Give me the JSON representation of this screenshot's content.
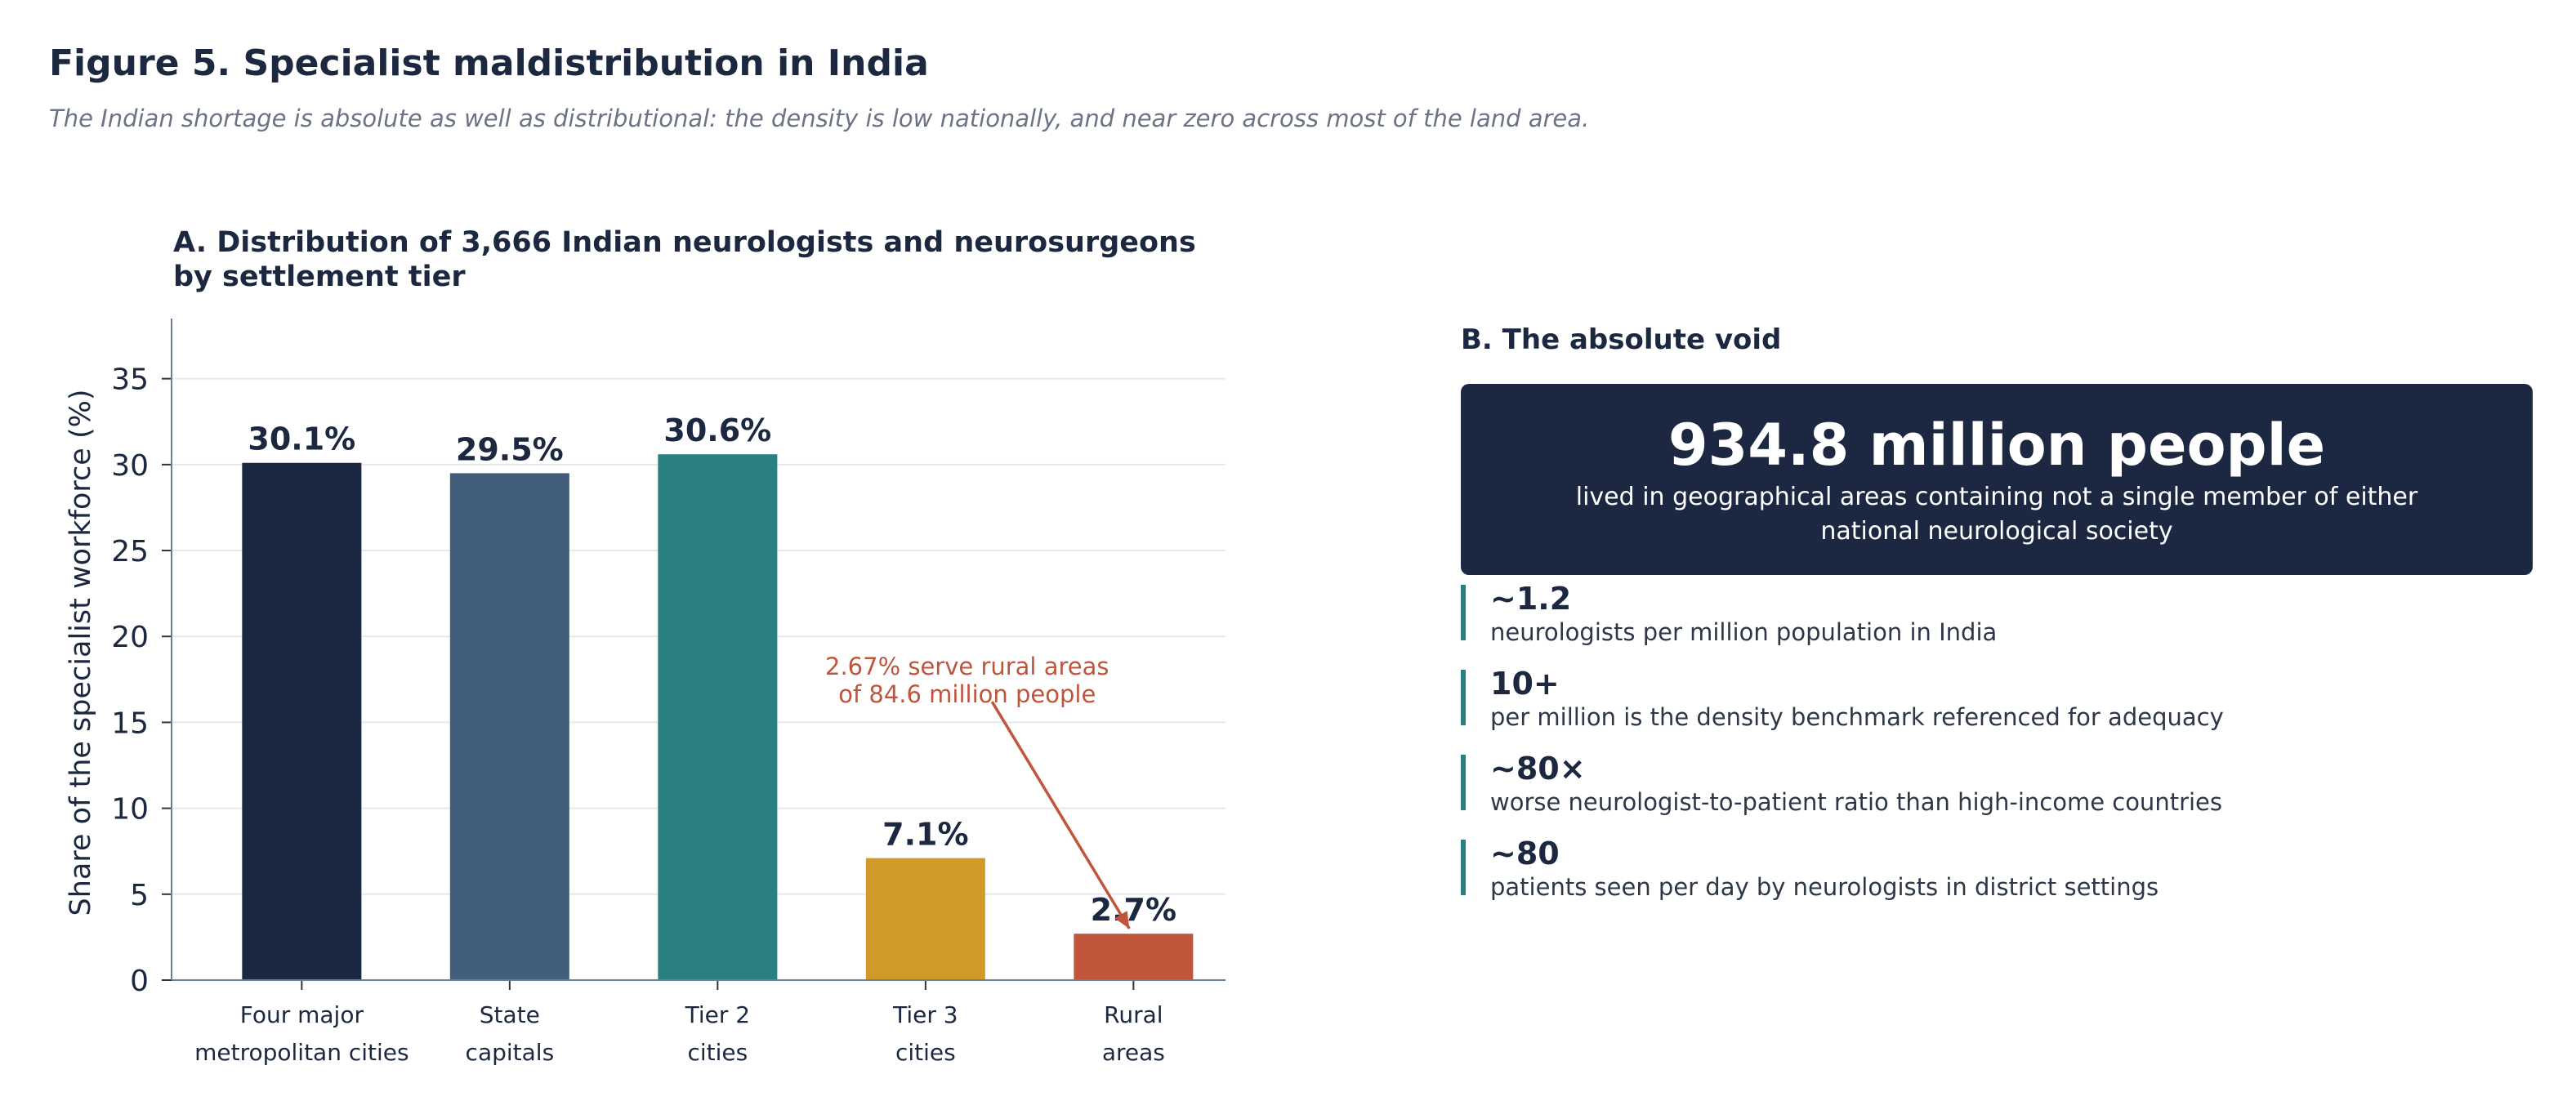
{
  "figure": {
    "title": "Figure 5.  Specialist maldistribution in India",
    "subtitle": "The Indian shortage is absolute as well as distributional: the density is low nationally, and near zero across most of the land area."
  },
  "chart_data": {
    "type": "bar",
    "title_lines": [
      "A.  Distribution of 3,666 Indian neurologists and neurosurgeons",
      "by settlement tier"
    ],
    "categories": [
      [
        "Four major",
        "metropolitan cities"
      ],
      [
        "State",
        "capitals"
      ],
      [
        "Tier 2",
        "cities"
      ],
      [
        "Tier 3",
        "cities"
      ],
      [
        "Rural",
        "areas"
      ]
    ],
    "values": [
      30.1,
      29.5,
      30.6,
      7.1,
      2.7
    ],
    "value_labels": [
      "30.1%",
      "29.5%",
      "30.6%",
      "7.1%",
      "2.7%"
    ],
    "colors": [
      "#1c2841",
      "#435e7b",
      "#2a7f80",
      "#d19a28",
      "#c0553b"
    ],
    "ylabel": "Share of the specialist workforce (%)",
    "ylim": [
      0,
      38.5
    ],
    "yticks": [
      0,
      5,
      10,
      15,
      20,
      25,
      30,
      35
    ],
    "grid": true,
    "annotation": {
      "lines": [
        "2.67% serve rural areas",
        "of 84.6 million people"
      ],
      "color": "#c0553b",
      "text_anchor": [
        3.2,
        17.5
      ],
      "arrow_from": [
        3.32,
        16.2
      ],
      "arrow_to": [
        3.98,
        3.0
      ]
    }
  },
  "panel_b": {
    "title": "B.  The absolute void",
    "highlight": {
      "number": "934.8 million people",
      "text": "lived in geographical areas containing not a single member of either national neurological society"
    },
    "stats": [
      {
        "value": "~1.2",
        "desc": "neurologists per million population in India"
      },
      {
        "value": "10+",
        "desc": "per million is the density benchmark referenced for adequacy"
      },
      {
        "value": "~80×",
        "desc": "worse neurologist-to-patient ratio than high-income countries"
      },
      {
        "value": "~80",
        "desc": "patients seen per day by neurologists in district settings"
      }
    ]
  }
}
